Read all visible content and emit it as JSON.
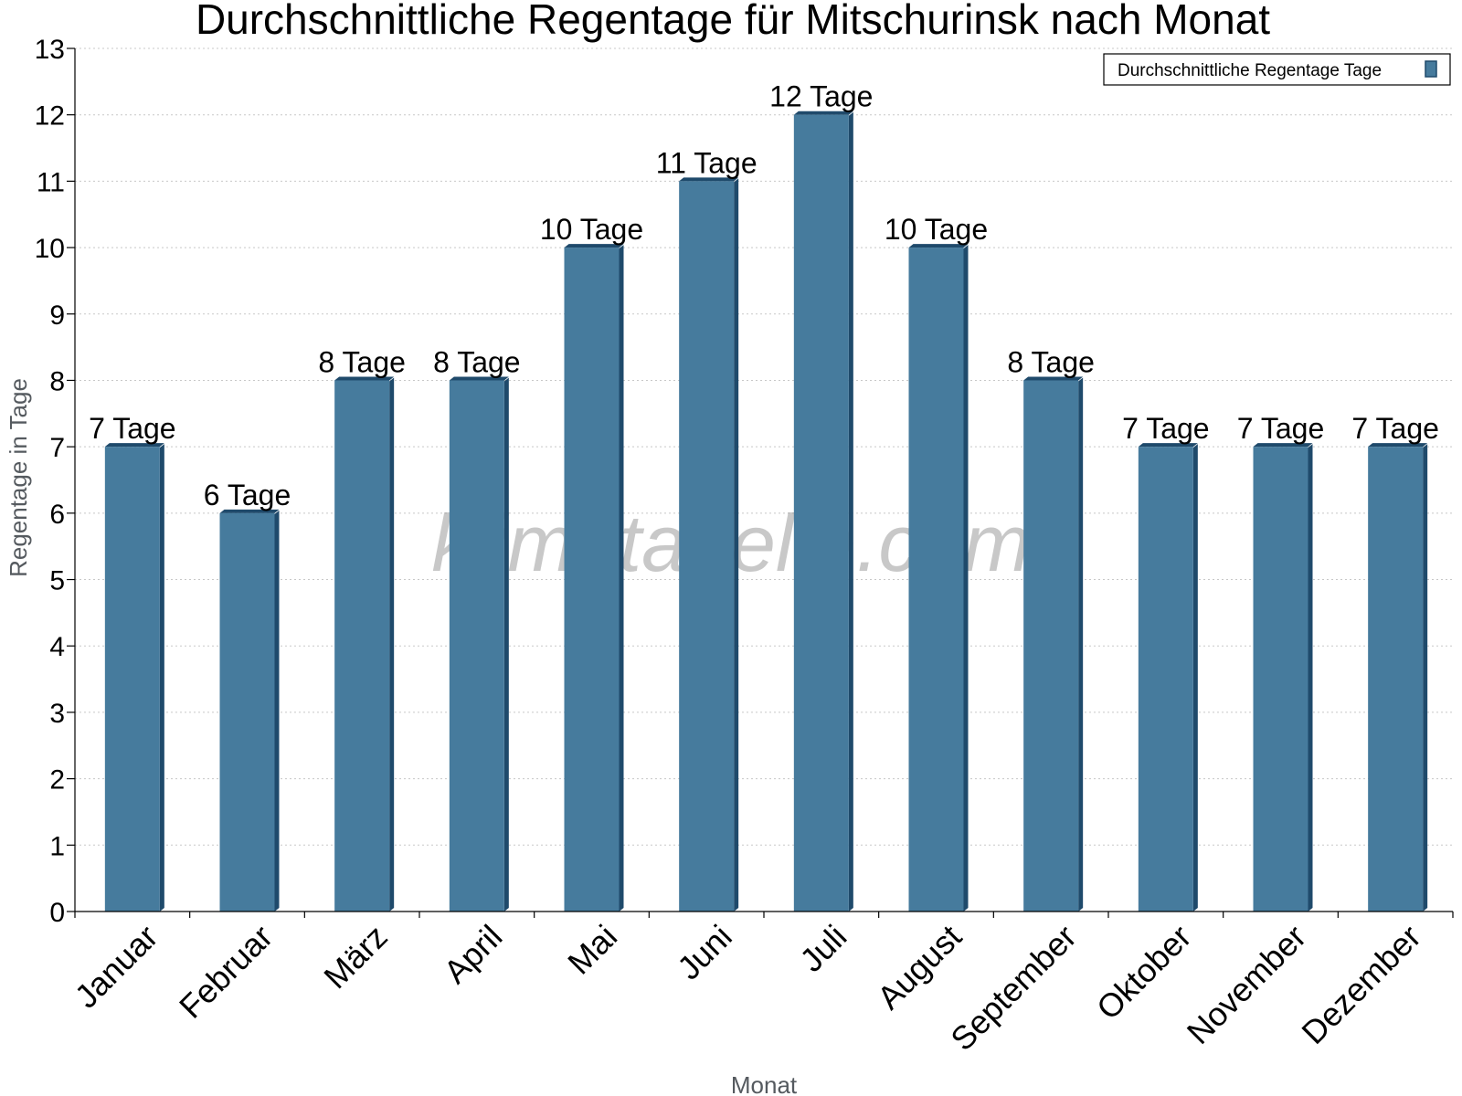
{
  "chart_data": {
    "type": "bar",
    "title": "Durchschnittliche Regentage für Mitschurinsk nach Monat",
    "xlabel": "Monat",
    "ylabel": "Regentage in Tage",
    "categories": [
      "Januar",
      "Februar",
      "März",
      "April",
      "Mai",
      "Juni",
      "Juli",
      "August",
      "September",
      "Oktober",
      "November",
      "Dezember"
    ],
    "series": [
      {
        "name": "Durchschnittliche Regentage Tage",
        "values": [
          7,
          6,
          8,
          8,
          10,
          11,
          12,
          10,
          8,
          7,
          7,
          7
        ],
        "data_labels": [
          "7 Tage",
          "6 Tage",
          "8 Tage",
          "8 Tage",
          "10 Tage",
          "11 Tage",
          "12 Tage",
          "10 Tage",
          "8 Tage",
          "7 Tage",
          "7 Tage",
          "7 Tage"
        ]
      }
    ],
    "ylim": [
      0,
      13
    ],
    "yticks": [
      "0",
      "1",
      "2",
      "3",
      "4",
      "5",
      "6",
      "7",
      "8",
      "9",
      "10",
      "11",
      "12",
      "13"
    ],
    "grid": true,
    "legend_position": "top-right",
    "watermark": "klimatabelle.com",
    "colors": {
      "bar": "#467b9d",
      "bar_side": "#1f4a6b",
      "bar_top": "#1f4a6b",
      "grid": "#c8c8c8",
      "axis": "#000000"
    }
  }
}
